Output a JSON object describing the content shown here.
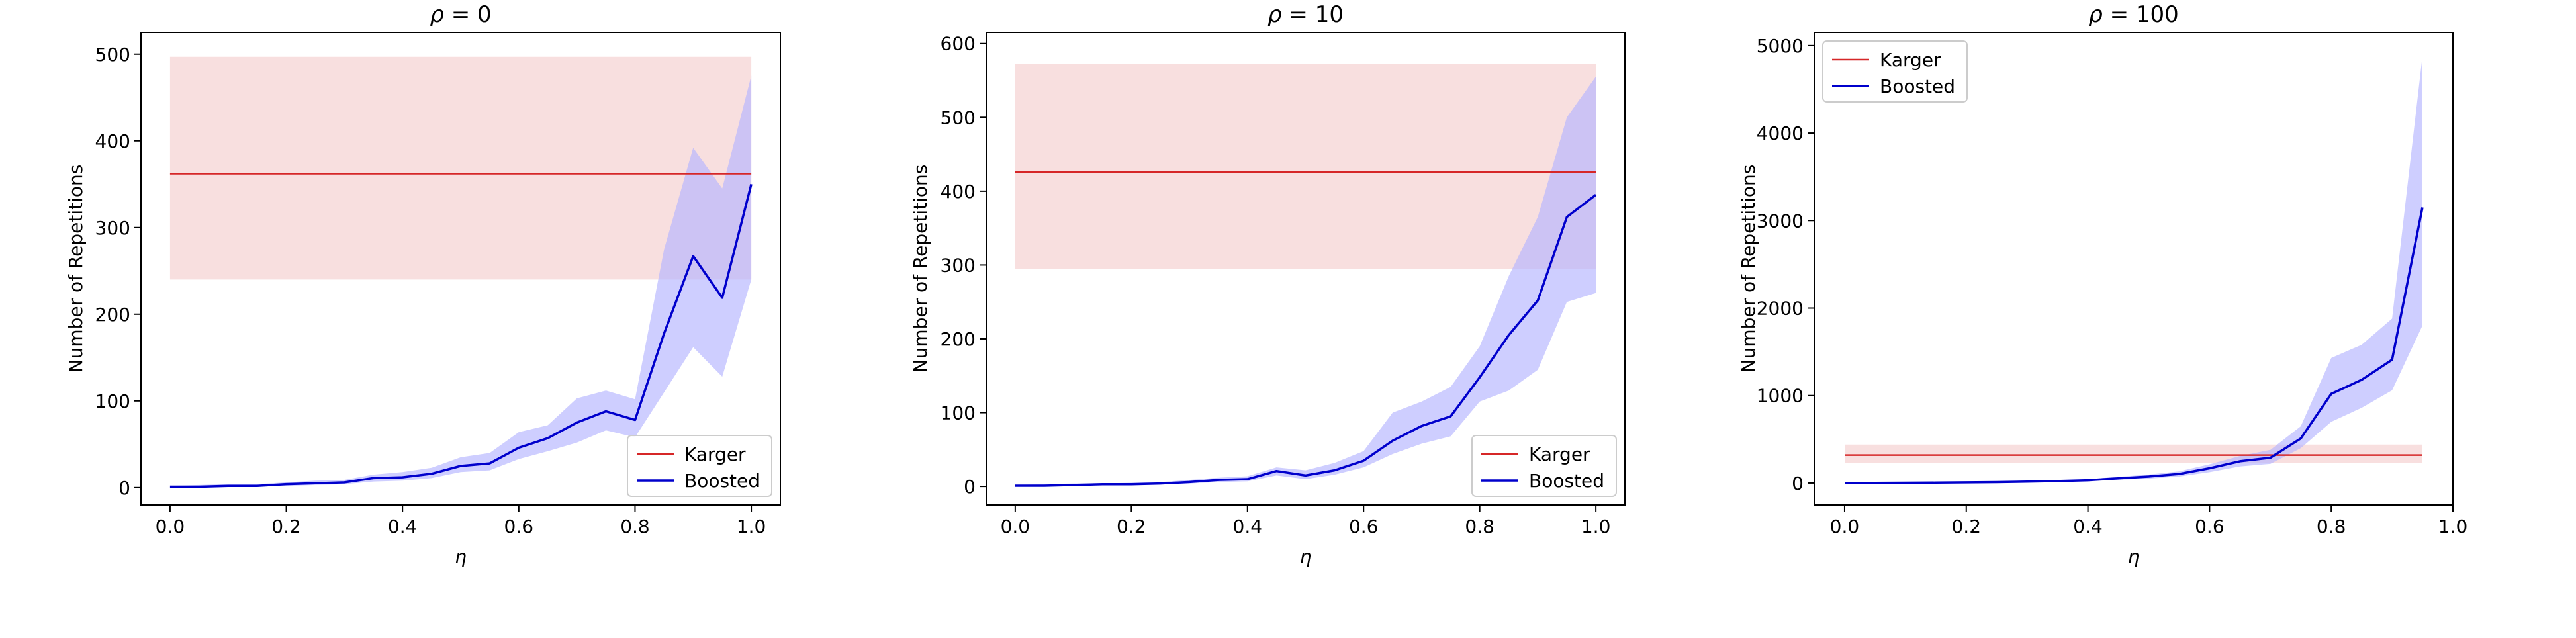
{
  "colors": {
    "karger": "#d62728",
    "karger_band": "#f2c4c4",
    "boosted": "#0000cc",
    "boosted_band": "#b4b4ff"
  },
  "chart_data": [
    {
      "type": "line",
      "title": "ρ = 0",
      "title_symbol": "ρ",
      "title_rest": " = 0",
      "xlabel": "η",
      "ylabel": "Number of Repetitions",
      "xlim": [
        -0.05,
        1.05
      ],
      "ylim": [
        -20,
        525
      ],
      "xticks": [
        0.0,
        0.2,
        0.4,
        0.6,
        0.8,
        1.0
      ],
      "xtick_labels": [
        "0.0",
        "0.2",
        "0.4",
        "0.6",
        "0.8",
        "1.0"
      ],
      "yticks": [
        0,
        100,
        200,
        300,
        400,
        500
      ],
      "ytick_labels": [
        "0",
        "100",
        "200",
        "300",
        "400",
        "500"
      ],
      "grid": false,
      "legend_position": "lower-right",
      "legend": [
        "Karger",
        "Boosted"
      ],
      "series": [
        {
          "name": "Karger",
          "x": [
            0.0,
            1.0
          ],
          "y": [
            362,
            362
          ],
          "band_low": [
            240,
            240
          ],
          "band_high": [
            497,
            497
          ]
        },
        {
          "name": "Boosted",
          "x": [
            0.0,
            0.05,
            0.1,
            0.15,
            0.2,
            0.25,
            0.3,
            0.35,
            0.4,
            0.45,
            0.5,
            0.55,
            0.6,
            0.65,
            0.7,
            0.75,
            0.8,
            0.85,
            0.9,
            0.95,
            1.0
          ],
          "y": [
            1,
            1,
            2,
            2,
            4,
            5,
            6,
            11,
            12,
            16,
            25,
            28,
            46,
            57,
            75,
            88,
            78,
            178,
            267,
            219,
            350
          ],
          "band_low": [
            0,
            0,
            1,
            1,
            2,
            3,
            4,
            7,
            8,
            11,
            18,
            20,
            33,
            42,
            52,
            66,
            58,
            110,
            162,
            128,
            240
          ],
          "band_high": [
            2,
            3,
            4,
            4,
            6,
            8,
            9,
            15,
            18,
            23,
            35,
            40,
            64,
            72,
            103,
            112,
            102,
            275,
            392,
            345,
            475
          ]
        }
      ]
    },
    {
      "type": "line",
      "title": "ρ = 10",
      "title_symbol": "ρ",
      "title_rest": " = 10",
      "xlabel": "η",
      "ylabel": "Number of Repetitions",
      "xlim": [
        -0.05,
        1.05
      ],
      "ylim": [
        -25,
        615
      ],
      "xticks": [
        0.0,
        0.2,
        0.4,
        0.6,
        0.8,
        1.0
      ],
      "xtick_labels": [
        "0.0",
        "0.2",
        "0.4",
        "0.6",
        "0.8",
        "1.0"
      ],
      "yticks": [
        0,
        100,
        200,
        300,
        400,
        500,
        600
      ],
      "ytick_labels": [
        "0",
        "100",
        "200",
        "300",
        "400",
        "500",
        "600"
      ],
      "grid": false,
      "legend_position": "lower-right",
      "legend": [
        "Karger",
        "Boosted"
      ],
      "series": [
        {
          "name": "Karger",
          "x": [
            0.0,
            1.0
          ],
          "y": [
            426,
            426
          ],
          "band_low": [
            295,
            295
          ],
          "band_high": [
            572,
            572
          ]
        },
        {
          "name": "Boosted",
          "x": [
            0.0,
            0.05,
            0.1,
            0.15,
            0.2,
            0.25,
            0.3,
            0.35,
            0.4,
            0.45,
            0.5,
            0.55,
            0.6,
            0.65,
            0.7,
            0.75,
            0.8,
            0.85,
            0.9,
            0.95,
            1.0
          ],
          "y": [
            1,
            1,
            2,
            3,
            3,
            4,
            6,
            9,
            10,
            21,
            15,
            22,
            35,
            62,
            82,
            95,
            148,
            205,
            252,
            365,
            395
          ],
          "band_low": [
            0,
            0,
            1,
            2,
            2,
            3,
            4,
            6,
            7,
            15,
            10,
            16,
            26,
            44,
            58,
            68,
            115,
            130,
            158,
            250,
            262
          ],
          "band_high": [
            2,
            3,
            4,
            4,
            5,
            6,
            9,
            12,
            14,
            26,
            22,
            32,
            48,
            100,
            115,
            135,
            190,
            285,
            365,
            500,
            555
          ]
        }
      ]
    },
    {
      "type": "line",
      "title": "ρ = 100",
      "title_symbol": "ρ",
      "title_rest": " = 100",
      "xlabel": "η",
      "ylabel": "Number of Repetitions",
      "xlim": [
        -0.05,
        1.0
      ],
      "ylim": [
        -250,
        5150
      ],
      "xticks": [
        0.0,
        0.2,
        0.4,
        0.6,
        0.8,
        1.0
      ],
      "xtick_labels": [
        "0.0",
        "0.2",
        "0.4",
        "0.6",
        "0.8",
        "1.0"
      ],
      "yticks": [
        0,
        1000,
        2000,
        3000,
        4000,
        5000
      ],
      "ytick_labels": [
        "0",
        "1000",
        "2000",
        "3000",
        "4000",
        "5000"
      ],
      "grid": false,
      "legend_position": "upper-left",
      "legend": [
        "Karger",
        "Boosted"
      ],
      "series": [
        {
          "name": "Karger",
          "x": [
            0.0,
            0.95
          ],
          "y": [
            320,
            320
          ],
          "band_low": [
            230,
            230
          ],
          "band_high": [
            440,
            440
          ]
        },
        {
          "name": "Boosted",
          "x": [
            0.0,
            0.05,
            0.1,
            0.15,
            0.2,
            0.25,
            0.3,
            0.35,
            0.4,
            0.45,
            0.5,
            0.55,
            0.6,
            0.65,
            0.7,
            0.75,
            0.8,
            0.85,
            0.9,
            0.95
          ],
          "y": [
            1,
            2,
            3,
            5,
            8,
            11,
            16,
            23,
            33,
            55,
            75,
            105,
            170,
            250,
            290,
            510,
            1020,
            1180,
            1410,
            3150
          ],
          "band_low": [
            0,
            1,
            2,
            3,
            5,
            7,
            10,
            15,
            22,
            38,
            52,
            75,
            125,
            190,
            220,
            400,
            700,
            860,
            1060,
            1800
          ],
          "band_high": [
            2,
            3,
            5,
            7,
            11,
            15,
            22,
            31,
            45,
            72,
            98,
            135,
            215,
            310,
            380,
            650,
            1430,
            1580,
            1880,
            4880
          ]
        }
      ]
    }
  ]
}
